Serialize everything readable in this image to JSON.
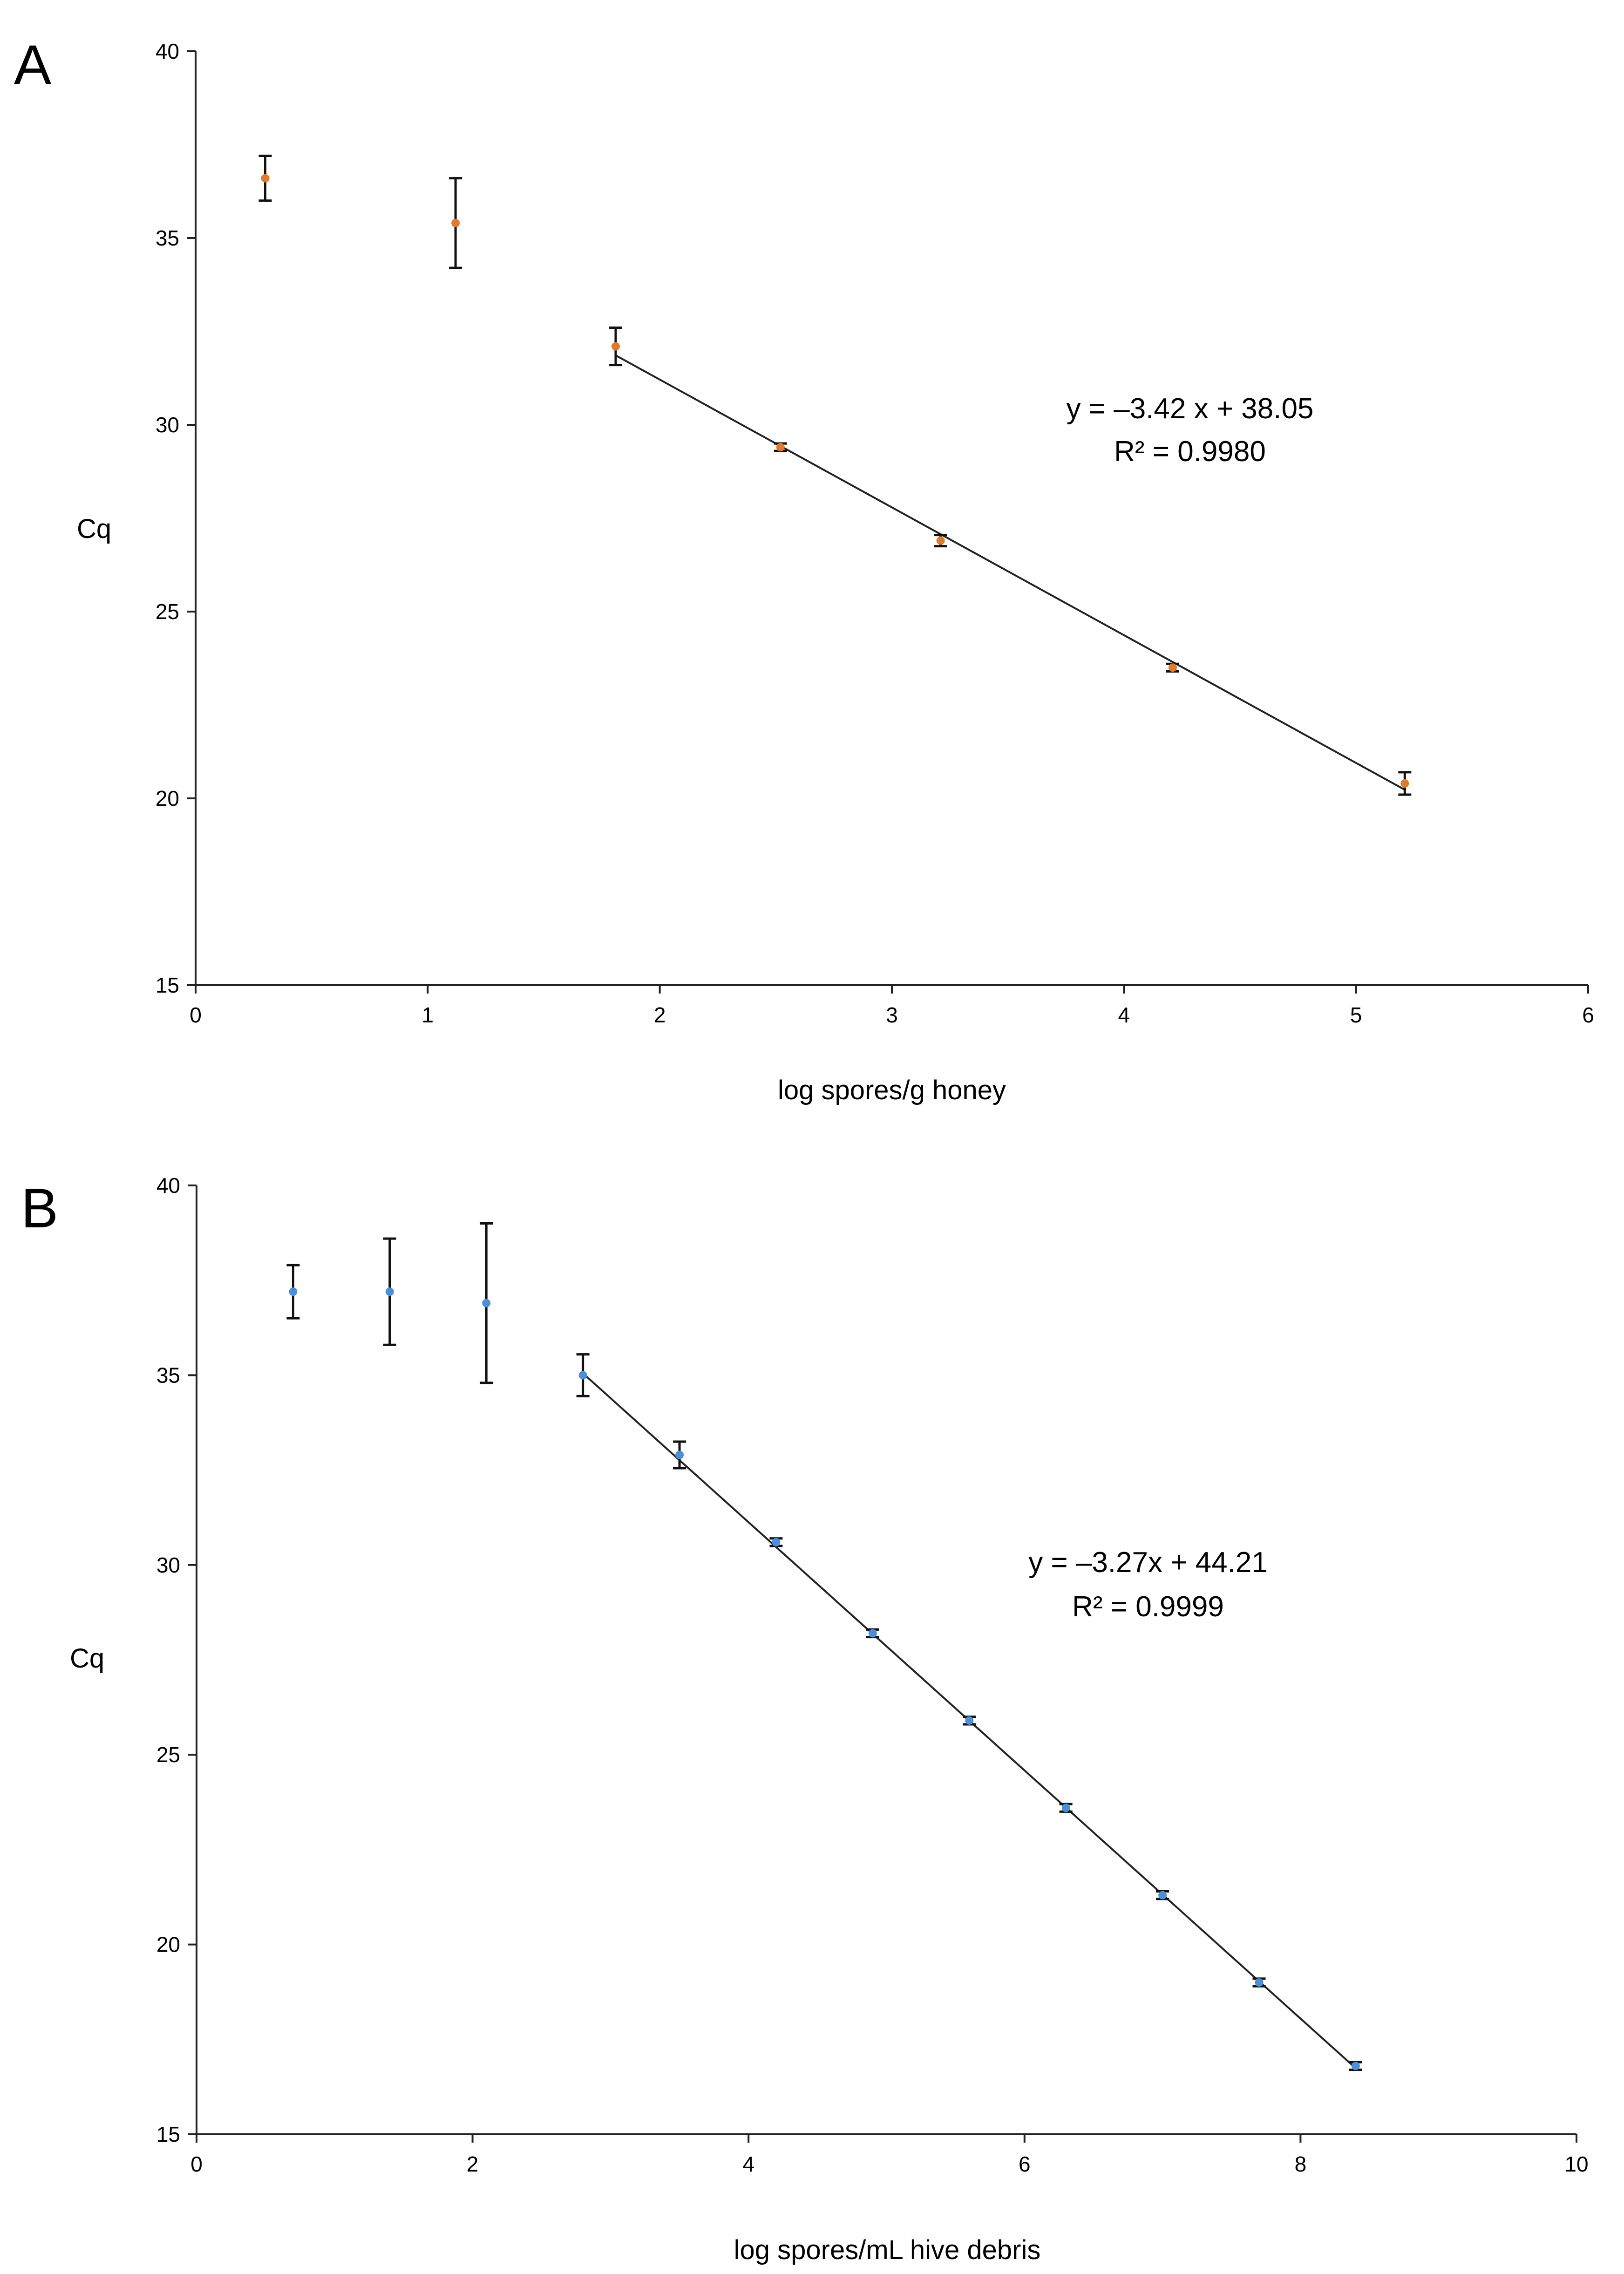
{
  "chart_data": [
    {
      "panel": "A",
      "type": "scatter",
      "xlabel": "log spores/g honey",
      "ylabel": "Cq",
      "xlim": [
        0,
        6
      ],
      "ylim": [
        15,
        40
      ],
      "xticks": [
        "0",
        "1",
        "2",
        "3",
        "4",
        "5",
        "6"
      ],
      "yticks": [
        "15",
        "20",
        "25",
        "30",
        "35",
        "40"
      ],
      "point_color": "#E07A2C",
      "series": [
        {
          "name": "Cq",
          "x": [
            0.3,
            1.12,
            1.81,
            2.52,
            3.21,
            4.21,
            5.21
          ],
          "y": [
            36.6,
            35.4,
            32.1,
            29.4,
            26.9,
            23.5,
            20.4
          ],
          "err": [
            0.6,
            1.2,
            0.5,
            0.1,
            0.15,
            0.1,
            0.3
          ]
        }
      ],
      "fit": {
        "x": [
          1.81,
          5.21
        ],
        "y": [
          31.86,
          20.23
        ]
      },
      "equation": "y = –3.42 x + 38.05",
      "r2": "R² = 0.9980"
    },
    {
      "panel": "B",
      "type": "scatter",
      "xlabel": "log spores/mL hive debris",
      "ylabel": "Cq",
      "xlim": [
        0,
        10
      ],
      "ylim": [
        15,
        40
      ],
      "xticks": [
        "0",
        "2",
        "4",
        "6",
        "8",
        "10"
      ],
      "yticks": [
        "15",
        "20",
        "25",
        "30",
        "35",
        "40"
      ],
      "point_color": "#4A90D9",
      "series": [
        {
          "name": "Cq",
          "x": [
            0.7,
            1.4,
            2.1,
            2.8,
            3.5,
            4.2,
            4.9,
            5.6,
            6.3,
            7.0,
            7.7,
            8.4
          ],
          "y": [
            37.2,
            37.2,
            36.9,
            35.0,
            32.9,
            30.6,
            28.2,
            25.9,
            23.6,
            21.3,
            19.0,
            16.8
          ],
          "err": [
            0.7,
            1.4,
            2.1,
            0.55,
            0.35,
            0.1,
            0.1,
            0.1,
            0.1,
            0.1,
            0.1,
            0.1
          ]
        }
      ],
      "fit": {
        "x": [
          2.8,
          8.4
        ],
        "y": [
          35.05,
          16.74
        ]
      },
      "equation": "y = –3.27x + 44.21",
      "r2": "R² = 0.9999"
    }
  ]
}
